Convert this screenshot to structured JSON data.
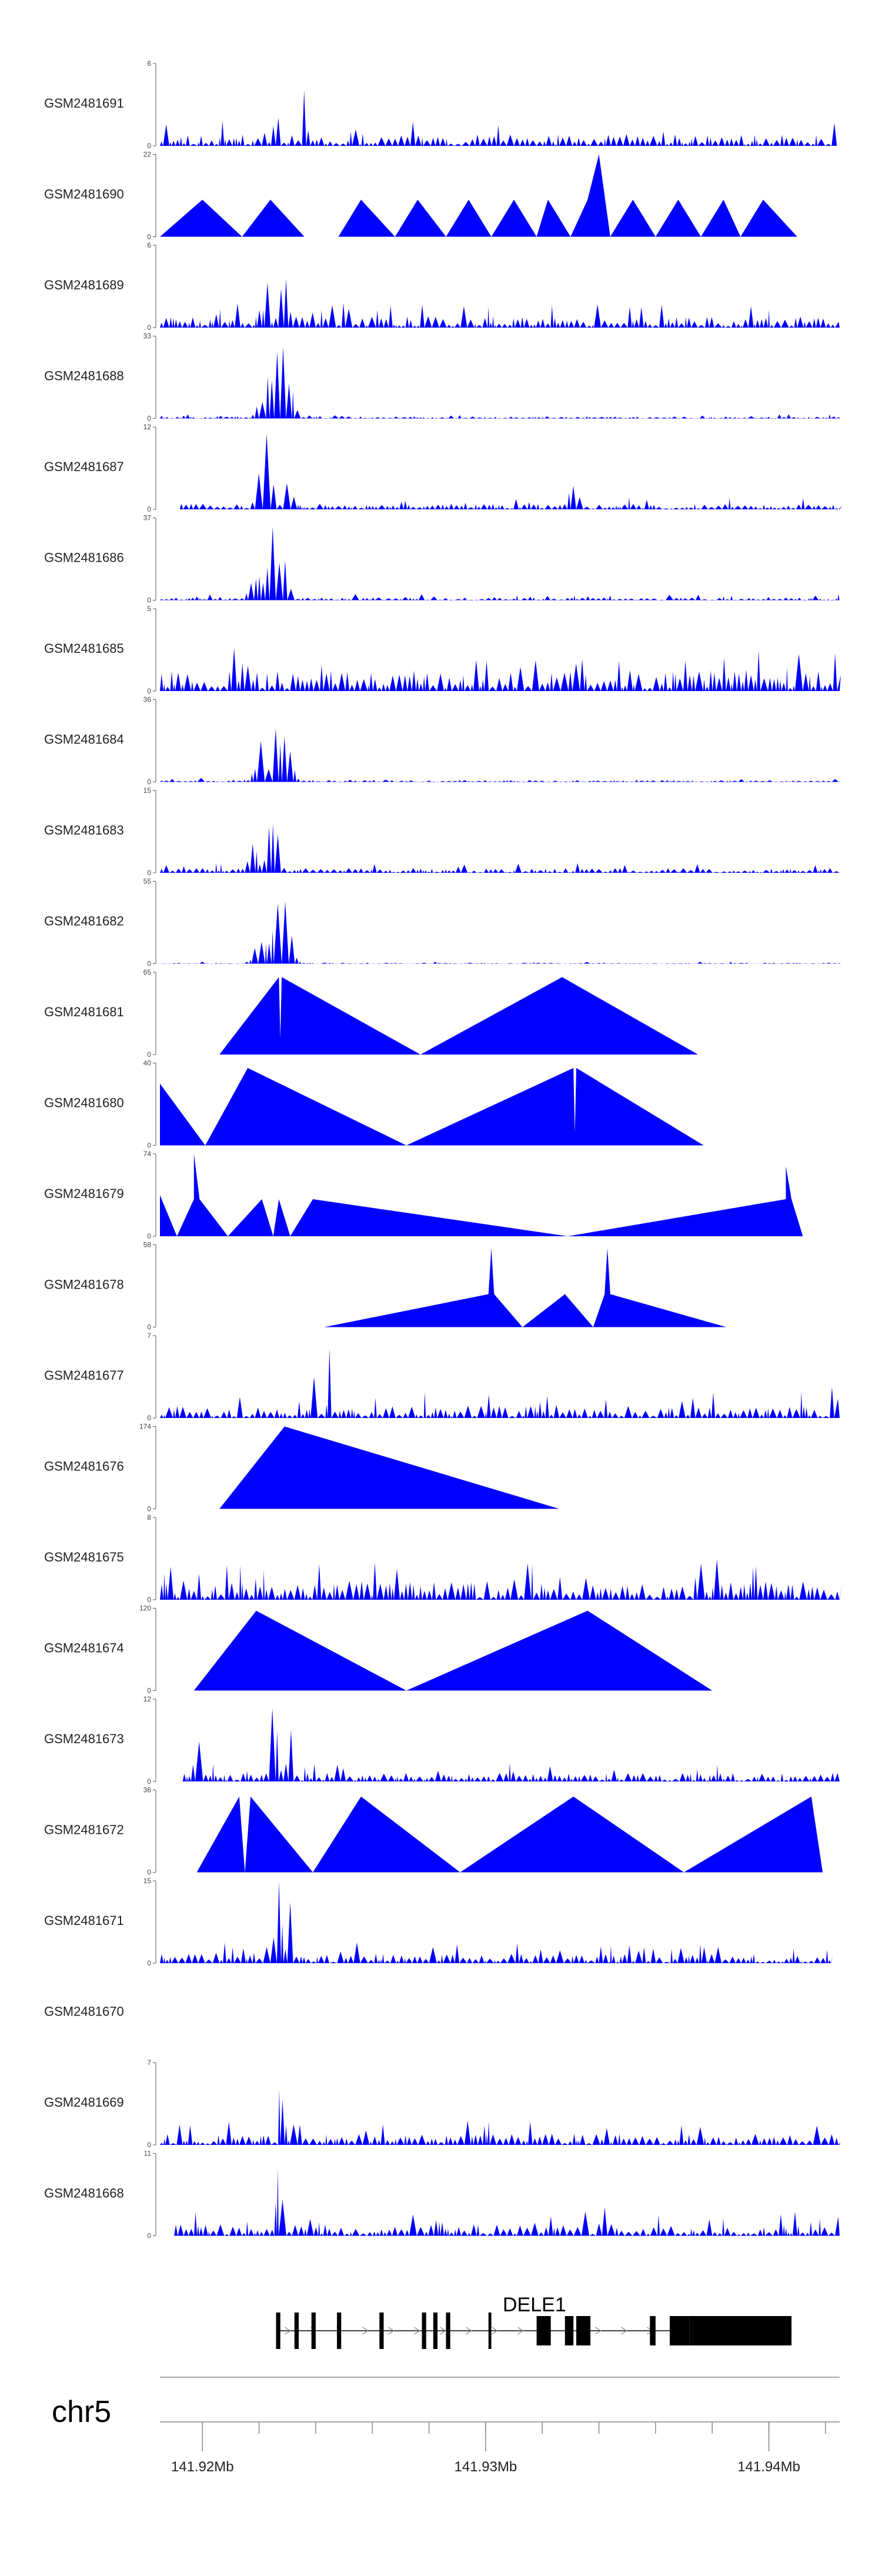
{
  "chart_data": {
    "type": "area",
    "chromosome": "chr5",
    "xlim": [
      141.9185,
      141.9425
    ],
    "x_ticks": [
      {
        "value": 141.92,
        "label": "141.92Mb"
      },
      {
        "value": 141.93,
        "label": "141.93Mb"
      },
      {
        "value": 141.94,
        "label": "141.94Mb"
      }
    ],
    "fill_color": "#0000ff",
    "gene": {
      "name": "DELE1",
      "start": 141.9226,
      "end": 141.9408,
      "strand": "+",
      "exons": [
        {
          "start": 141.9226,
          "end": 141.92275,
          "thick": false
        },
        {
          "start": 141.92325,
          "end": 141.9234,
          "thick": false
        },
        {
          "start": 141.92385,
          "end": 141.924,
          "thick": false
        },
        {
          "start": 141.92475,
          "end": 141.9249,
          "thick": false
        },
        {
          "start": 141.92625,
          "end": 141.9264,
          "thick": false
        },
        {
          "start": 141.92775,
          "end": 141.9279,
          "thick": false
        },
        {
          "start": 141.92815,
          "end": 141.9283,
          "thick": false
        },
        {
          "start": 141.9286,
          "end": 141.92875,
          "thick": false
        },
        {
          "start": 141.9301,
          "end": 141.9302,
          "thick": false
        },
        {
          "start": 141.9318,
          "end": 141.9323,
          "thick": true
        },
        {
          "start": 141.9328,
          "end": 141.9331,
          "thick": true
        },
        {
          "start": 141.9332,
          "end": 141.9337,
          "thick": true
        },
        {
          "start": 141.9358,
          "end": 141.936,
          "thick": true
        },
        {
          "start": 141.9365,
          "end": 141.9372,
          "thick": true
        },
        {
          "start": 141.9372,
          "end": 141.9408,
          "thick": true
        }
      ]
    },
    "series": [
      {
        "name": "GSM2481691",
        "ymax": 6,
        "pattern": "dense",
        "range": [
          141.9185,
          141.9424
        ],
        "seed": 11,
        "base": 0.12,
        "peaks": [
          [
            141.9236,
            0.95,
            0.00012
          ],
          [
            141.9226,
            0.75,
            0.0001
          ]
        ]
      },
      {
        "name": "GSM2481690",
        "ymax": 22,
        "pattern": "tri",
        "points": [
          [
            141.9185,
            0
          ],
          [
            141.92,
            0.45
          ],
          [
            141.9214,
            0
          ],
          [
            141.9224,
            0.45
          ],
          [
            141.9236,
            0
          ],
          [
            141.9248,
            0
          ],
          [
            141.9256,
            0.45
          ],
          [
            141.9268,
            0
          ],
          [
            141.9276,
            0.45
          ],
          [
            141.9286,
            0
          ],
          [
            141.9294,
            0.45
          ],
          [
            141.9302,
            0
          ],
          [
            141.931,
            0.45
          ],
          [
            141.9318,
            0
          ],
          [
            141.9322,
            0.45
          ],
          [
            141.933,
            0
          ],
          [
            141.9336,
            0.45
          ],
          [
            141.934,
            1.0
          ],
          [
            141.9344,
            0
          ],
          [
            141.9352,
            0.45
          ],
          [
            141.936,
            0
          ],
          [
            141.9368,
            0.45
          ],
          [
            141.9376,
            0
          ],
          [
            141.9384,
            0.45
          ],
          [
            141.939,
            0
          ],
          [
            141.9398,
            0.45
          ],
          [
            141.941,
            0
          ]
        ]
      },
      {
        "name": "GSM2481689",
        "ymax": 6,
        "pattern": "dense",
        "range": [
          141.9185,
          141.9425
        ],
        "seed": 23,
        "base": 0.12,
        "peaks": [
          [
            141.9229,
            1.0,
            0.00015
          ],
          [
            141.9223,
            0.7,
            0.00012
          ]
        ]
      },
      {
        "name": "GSM2481688",
        "ymax": 33,
        "pattern": "dense",
        "range": [
          141.9185,
          141.9425
        ],
        "seed": 37,
        "base": 0.02,
        "peaks": [
          [
            141.9228,
            1.0,
            0.0004
          ],
          [
            141.9223,
            0.55,
            0.00035
          ]
        ]
      },
      {
        "name": "GSM2481687",
        "ymax": 12,
        "pattern": "dense",
        "range": [
          141.9192,
          141.9425
        ],
        "seed": 41,
        "base": 0.06,
        "peaks": [
          [
            141.9222,
            1.0,
            0.0003
          ],
          [
            141.9231,
            0.45,
            0.0002
          ],
          [
            141.9331,
            0.35,
            0.00025
          ]
        ]
      },
      {
        "name": "GSM2481686",
        "ymax": 37,
        "pattern": "dense",
        "range": [
          141.9185,
          141.9425
        ],
        "seed": 53,
        "base": 0.03,
        "peaks": [
          [
            141.9226,
            1.0,
            0.0004
          ],
          [
            141.922,
            0.5,
            0.00035
          ]
        ]
      },
      {
        "name": "GSM2481685",
        "ymax": 5,
        "pattern": "dense",
        "range": [
          141.9185,
          141.9425
        ],
        "seed": 61,
        "base": 0.22,
        "peaks": [
          [
            141.9215,
            0.95,
            0.00012
          ],
          [
            141.9333,
            0.6,
            0.0002
          ]
        ]
      },
      {
        "name": "GSM2481684",
        "ymax": 36,
        "pattern": "dense",
        "range": [
          141.9185,
          141.9425
        ],
        "seed": 71,
        "base": 0.02,
        "peaks": [
          [
            141.9228,
            1.0,
            0.00035
          ],
          [
            141.9221,
            0.6,
            0.0003
          ]
        ]
      },
      {
        "name": "GSM2481683",
        "ymax": 15,
        "pattern": "dense",
        "range": [
          141.9185,
          141.9425
        ],
        "seed": 83,
        "base": 0.05,
        "peaks": [
          [
            141.9225,
            1.0,
            0.00025
          ],
          [
            141.9218,
            0.45,
            0.0002
          ]
        ]
      },
      {
        "name": "GSM2481682",
        "ymax": 55,
        "pattern": "dense",
        "range": [
          141.9185,
          141.9425
        ],
        "seed": 97,
        "base": 0.01,
        "peaks": [
          [
            141.9228,
            1.0,
            0.00035
          ],
          [
            141.9221,
            0.55,
            0.0003
          ]
        ]
      },
      {
        "name": "GSM2481681",
        "ymax": 65,
        "pattern": "tri",
        "points": [
          [
            141.9206,
            0
          ],
          [
            141.9227,
            0.94
          ],
          [
            141.92275,
            0.2
          ],
          [
            141.9228,
            0.94
          ],
          [
            141.9277,
            0
          ],
          [
            141.9327,
            0.94
          ],
          [
            141.9375,
            0
          ]
        ]
      },
      {
        "name": "GSM2481680",
        "ymax": 40,
        "pattern": "tri",
        "points": [
          [
            141.9185,
            0.75
          ],
          [
            141.9201,
            0
          ],
          [
            141.9216,
            0.94
          ],
          [
            141.9272,
            0
          ],
          [
            141.9331,
            0.94
          ],
          [
            141.93315,
            0.15
          ],
          [
            141.9332,
            0.94
          ],
          [
            141.9377,
            0
          ]
        ]
      },
      {
        "name": "GSM2481679",
        "ymax": 74,
        "pattern": "tri",
        "points": [
          [
            141.9185,
            0.5
          ],
          [
            141.9191,
            0
          ],
          [
            141.9197,
            0.45
          ],
          [
            141.9197,
            1.0
          ],
          [
            141.9199,
            0.45
          ],
          [
            141.9209,
            0
          ],
          [
            141.9221,
            0.45
          ],
          [
            141.9225,
            0
          ],
          [
            141.9227,
            0.45
          ],
          [
            141.9231,
            0
          ],
          [
            141.9239,
            0.45
          ],
          [
            141.9329,
            0
          ],
          [
            141.9406,
            0.45
          ],
          [
            141.9406,
            0.85
          ],
          [
            141.9408,
            0.45
          ],
          [
            141.9412,
            0
          ]
        ]
      },
      {
        "name": "GSM2481678",
        "ymax": 58,
        "pattern": "tri",
        "points": [
          [
            141.9243,
            0
          ],
          [
            141.9301,
            0.4
          ],
          [
            141.9302,
            0.96
          ],
          [
            141.9303,
            0.4
          ],
          [
            141.9313,
            0
          ],
          [
            141.9328,
            0.4
          ],
          [
            141.9338,
            0
          ],
          [
            141.9342,
            0.4
          ],
          [
            141.9343,
            0.96
          ],
          [
            141.9344,
            0.4
          ],
          [
            141.9385,
            0
          ]
        ]
      },
      {
        "name": "GSM2481677",
        "ymax": 7,
        "pattern": "dense",
        "range": [
          141.9185,
          141.9425
        ],
        "seed": 109,
        "base": 0.13,
        "peaks": [
          [
            141.9245,
            0.95,
            0.0001
          ],
          [
            141.924,
            0.75,
            0.00012
          ],
          [
            141.9423,
            0.95,
            0.00015
          ]
        ]
      },
      {
        "name": "GSM2481676",
        "ymax": 174,
        "pattern": "tri",
        "points": [
          [
            141.9206,
            0
          ],
          [
            141.9229,
            1.0
          ],
          [
            141.9326,
            0
          ]
        ]
      },
      {
        "name": "GSM2481675",
        "ymax": 8,
        "pattern": "dense",
        "range": [
          141.9185,
          141.9425
        ],
        "seed": 127,
        "base": 0.2,
        "peaks": [
          [
            141.9375,
            0.95,
            0.00012
          ],
          [
            141.9395,
            0.75,
            0.00012
          ]
        ]
      },
      {
        "name": "GSM2481674",
        "ymax": 120,
        "pattern": "tri",
        "points": [
          [
            141.9197,
            0
          ],
          [
            141.9219,
            0.97
          ],
          [
            141.9272,
            0
          ],
          [
            141.9336,
            0.97
          ],
          [
            141.938,
            0
          ]
        ]
      },
      {
        "name": "GSM2481673",
        "ymax": 12,
        "pattern": "dense",
        "range": [
          141.9193,
          141.9425
        ],
        "seed": 139,
        "base": 0.09,
        "peaks": [
          [
            141.9225,
            1.0,
            0.0002
          ],
          [
            141.9231,
            0.75,
            0.00015
          ],
          [
            141.9198,
            0.7,
            0.00015
          ]
        ]
      },
      {
        "name": "GSM2481672",
        "ymax": 36,
        "pattern": "tri",
        "points": [
          [
            141.9198,
            0
          ],
          [
            141.9213,
            0.92
          ],
          [
            141.9215,
            0
          ],
          [
            141.9217,
            0.92
          ],
          [
            141.9239,
            0
          ],
          [
            141.9256,
            0.92
          ],
          [
            141.9291,
            0
          ],
          [
            141.9331,
            0.92
          ],
          [
            141.937,
            0
          ],
          [
            141.9415,
            0.92
          ],
          [
            141.9419,
            0
          ]
        ]
      },
      {
        "name": "GSM2481671",
        "ymax": 15,
        "pattern": "dense",
        "range": [
          141.9185,
          141.9422
        ],
        "seed": 151,
        "base": 0.1,
        "peaks": [
          [
            141.9227,
            1.0,
            0.0002
          ],
          [
            141.9231,
            0.75,
            0.00015
          ]
        ]
      },
      {
        "name": "GSM2481670",
        "ymax": null,
        "pattern": "empty"
      },
      {
        "name": "GSM2481669",
        "ymax": 7,
        "pattern": "dense",
        "range": [
          141.9185,
          141.9425
        ],
        "seed": 163,
        "base": 0.12,
        "peaks": [
          [
            141.9228,
            1.0,
            0.00015
          ],
          [
            141.9233,
            0.6,
            0.00015
          ]
        ]
      },
      {
        "name": "GSM2481668",
        "ymax": 11,
        "pattern": "dense",
        "range": [
          141.919,
          141.9425
        ],
        "seed": 173,
        "base": 0.12,
        "peaks": [
          [
            141.9227,
            1.0,
            0.00015
          ],
          [
            141.9343,
            0.6,
            0.00015
          ]
        ]
      }
    ]
  }
}
